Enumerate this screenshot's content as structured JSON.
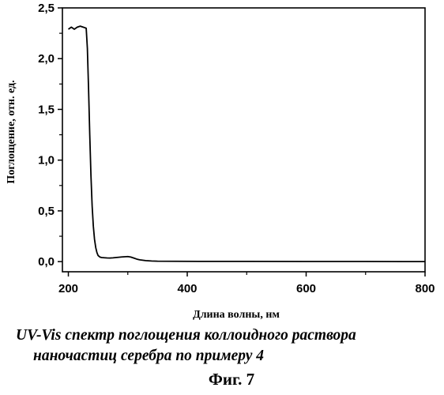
{
  "chart_data": {
    "type": "line",
    "title": "",
    "xlabel": "Длина волны, нм",
    "ylabel": "Поглощение, отн. ед.",
    "xlim": [
      190,
      800
    ],
    "ylim": [
      -0.1,
      2.5
    ],
    "xticks": [
      200,
      400,
      600,
      800
    ],
    "xtick_labels": [
      "200",
      "400",
      "600",
      "800"
    ],
    "yticks": [
      0.0,
      0.5,
      1.0,
      1.5,
      2.0,
      2.5
    ],
    "ytick_labels": [
      "0,0",
      "0,5",
      "1,0",
      "1,5",
      "2,0",
      "2,5"
    ],
    "grid": false,
    "legend": "none",
    "series": [
      {
        "x": [
          200,
          205,
          210,
          215,
          220,
          225,
          230,
          232,
          234,
          236,
          238,
          240,
          242,
          244,
          246,
          248,
          250,
          253,
          256,
          260,
          265,
          270,
          275,
          280,
          285,
          290,
          295,
          300,
          305,
          310,
          315,
          320,
          330,
          340,
          350,
          380,
          420,
          500,
          600,
          700,
          800
        ],
        "y": [
          2.29,
          2.31,
          2.29,
          2.31,
          2.32,
          2.31,
          2.3,
          2.1,
          1.7,
          1.25,
          0.85,
          0.55,
          0.35,
          0.22,
          0.14,
          0.09,
          0.06,
          0.045,
          0.04,
          0.038,
          0.036,
          0.035,
          0.037,
          0.04,
          0.043,
          0.046,
          0.048,
          0.05,
          0.045,
          0.035,
          0.025,
          0.018,
          0.01,
          0.006,
          0.004,
          0.003,
          0.002,
          0.002,
          0.001,
          0.001,
          0.0
        ]
      }
    ]
  },
  "caption": {
    "line1": "UV-Vis спектр поглощения коллоидного раствора",
    "line2": "наночастиц серебра по примеру 4",
    "figure": "Фиг. 7"
  }
}
